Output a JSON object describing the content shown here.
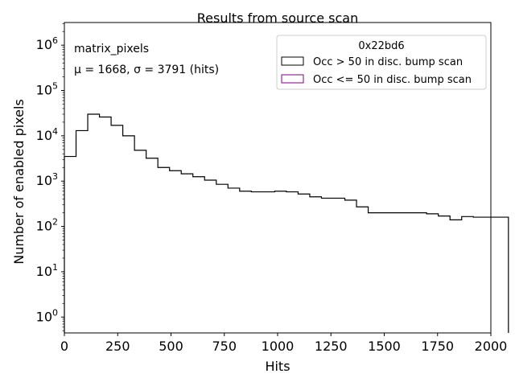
{
  "chart_data": {
    "type": "histogram",
    "title": "Results from source scan",
    "xlabel": "Hits",
    "ylabel": "Number of enabled pixels",
    "xlim": [
      0,
      2000
    ],
    "ylim_log10": [
      -0.35,
      6.5
    ],
    "yscale": "log",
    "x_ticks": [
      0,
      250,
      500,
      750,
      1000,
      1250,
      1500,
      1750,
      2000
    ],
    "x_tick_labels": [
      "0",
      "250",
      "500",
      "750",
      "1000",
      "1250",
      "1500",
      "1750",
      "2000"
    ],
    "y_ticks_exp": [
      0,
      1,
      2,
      3,
      4,
      5,
      6
    ],
    "y_tick_base": "10",
    "annotation": {
      "name": "matrix_pixels",
      "stats": "μ = 1668, σ = 3791 (hits)"
    },
    "legend": {
      "title": "0x22bd6",
      "location": "top-right",
      "entries": [
        {
          "label": "Occ > 50 in disc. bump scan",
          "color": "#000000"
        },
        {
          "label": "Occ <= 50 in disc. bump scan",
          "color": "#800080"
        }
      ]
    },
    "series": [
      {
        "name": "Occ > 50 in disc. bump scan",
        "color": "#000000",
        "bin_width": 54.8,
        "bin_start": 0,
        "values": [
          3500,
          13000,
          30000,
          26000,
          17000,
          10000,
          4800,
          3200,
          2000,
          1700,
          1450,
          1250,
          1050,
          850,
          700,
          600,
          580,
          580,
          600,
          580,
          520,
          450,
          420,
          420,
          380,
          270,
          200,
          200,
          200,
          200,
          200,
          190,
          170,
          140,
          165,
          160,
          160,
          160
        ]
      }
    ]
  }
}
